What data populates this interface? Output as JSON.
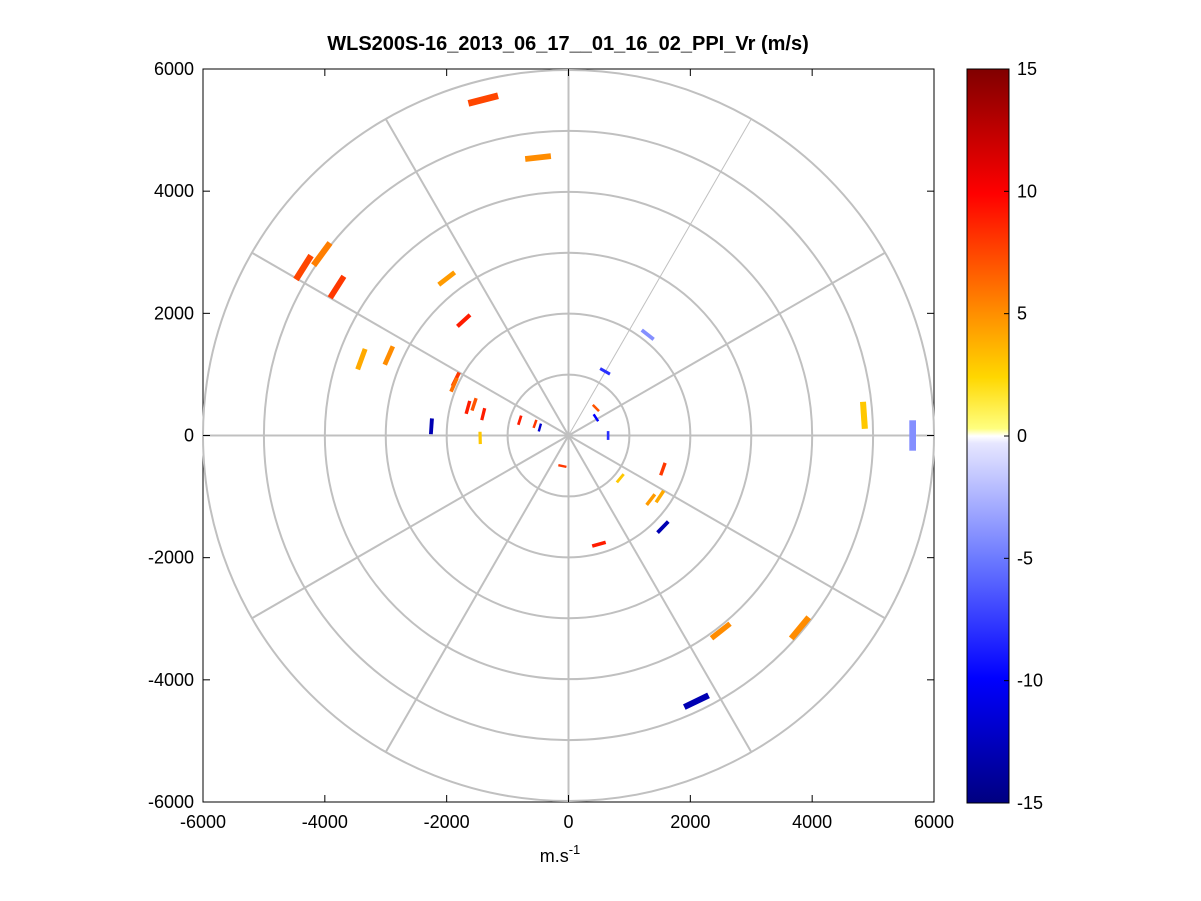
{
  "chart_data": {
    "type": "scatter",
    "title": "WLS200S-16_2013_06_17__01_16_02_PPI_Vr (m/s)",
    "xlabel": "m.s",
    "xlabel_superscript": "-1",
    "ylabel": "",
    "xlim": [
      -6000,
      6000
    ],
    "ylim": [
      -6000,
      6000
    ],
    "x_ticks": [
      -6000,
      -4000,
      -2000,
      0,
      2000,
      4000,
      6000
    ],
    "y_ticks": [
      -6000,
      -4000,
      -2000,
      0,
      2000,
      4000,
      6000
    ],
    "polar_grid": {
      "rings": [
        1000,
        2000,
        3000,
        4000,
        5000,
        6000
      ],
      "spoke_angles_deg": [
        0,
        30,
        60,
        90,
        120,
        150,
        180,
        210,
        240,
        270,
        300,
        330
      ],
      "color": "#c0c0c0"
    },
    "colorbar": {
      "min": -15,
      "max": 15,
      "ticks": [
        -15,
        -10,
        -5,
        0,
        5,
        10,
        15
      ]
    },
    "segments": [
      {
        "x": -1400,
        "y": 5500,
        "v": 7.5
      },
      {
        "x": -500,
        "y": 4550,
        "v": 5
      },
      {
        "x": -4350,
        "y": 2750,
        "v": 7.5
      },
      {
        "x": -4050,
        "y": 2970,
        "v": 5.5
      },
      {
        "x": -3800,
        "y": 2430,
        "v": 8
      },
      {
        "x": -2000,
        "y": 2570,
        "v": 4.5
      },
      {
        "x": -1720,
        "y": 1880,
        "v": 9
      },
      {
        "x": -3400,
        "y": 1250,
        "v": 4
      },
      {
        "x": -2950,
        "y": 1310,
        "v": 5
      },
      {
        "x": -2250,
        "y": 150,
        "v": -13
      },
      {
        "x": -1850,
        "y": 920,
        "v": 8
      },
      {
        "x": -1880,
        "y": 830,
        "v": 6
      },
      {
        "x": -1550,
        "y": 510,
        "v": 7
      },
      {
        "x": -1650,
        "y": 460,
        "v": 9
      },
      {
        "x": -1400,
        "y": 350,
        "v": 9
      },
      {
        "x": -800,
        "y": 250,
        "v": 9
      },
      {
        "x": -550,
        "y": 190,
        "v": 8
      },
      {
        "x": -470,
        "y": 130,
        "v": -12
      },
      {
        "x": -1450,
        "y": -40,
        "v": 3
      },
      {
        "x": 1300,
        "y": 1650,
        "v": -4
      },
      {
        "x": 600,
        "y": 1050,
        "v": -8
      },
      {
        "x": 450,
        "y": 450,
        "v": 7
      },
      {
        "x": 450,
        "y": 290,
        "v": -10
      },
      {
        "x": 650,
        "y": 0,
        "v": -8
      },
      {
        "x": 4850,
        "y": 330,
        "v": 3
      },
      {
        "x": 5650,
        "y": 0,
        "v": -4
      },
      {
        "x": 1550,
        "y": -550,
        "v": 8
      },
      {
        "x": 850,
        "y": -700,
        "v": 3
      },
      {
        "x": 1350,
        "y": -1050,
        "v": 4.5
      },
      {
        "x": 1500,
        "y": -1000,
        "v": 4
      },
      {
        "x": 1550,
        "y": -1500,
        "v": -13
      },
      {
        "x": 500,
        "y": -1780,
        "v": 9
      },
      {
        "x": -100,
        "y": -500,
        "v": 8
      },
      {
        "x": 2500,
        "y": -3200,
        "v": 5
      },
      {
        "x": 3800,
        "y": -3150,
        "v": 5
      },
      {
        "x": 2100,
        "y": -4350,
        "v": -13
      }
    ]
  }
}
